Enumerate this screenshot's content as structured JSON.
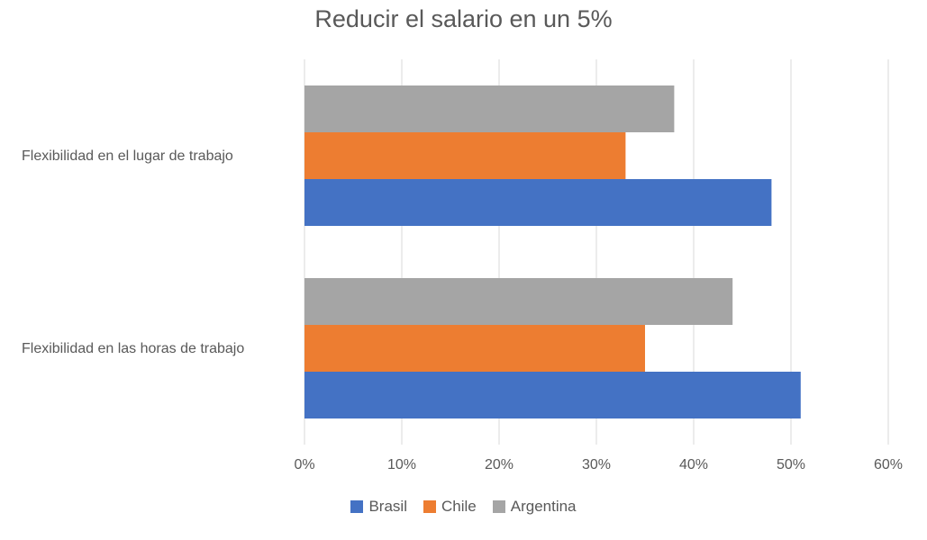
{
  "chart_data": {
    "type": "bar",
    "orientation": "horizontal",
    "title": "Reducir el salario en un 5%",
    "categories": [
      "Flexibilidad en el lugar de trabajo",
      "Flexibilidad en las horas de trabajo"
    ],
    "series": [
      {
        "name": "Brasil",
        "color": "#4472C4",
        "values": [
          48,
          51
        ]
      },
      {
        "name": "Chile",
        "color": "#ED7D31",
        "values": [
          33,
          35
        ]
      },
      {
        "name": "Argentina",
        "color": "#A5A5A5",
        "values": [
          38,
          44
        ]
      }
    ],
    "xlim": [
      0,
      60
    ],
    "xticks": [
      "0%",
      "10%",
      "20%",
      "30%",
      "40%",
      "50%",
      "60%"
    ],
    "grid": true,
    "legend_position": "bottom"
  }
}
